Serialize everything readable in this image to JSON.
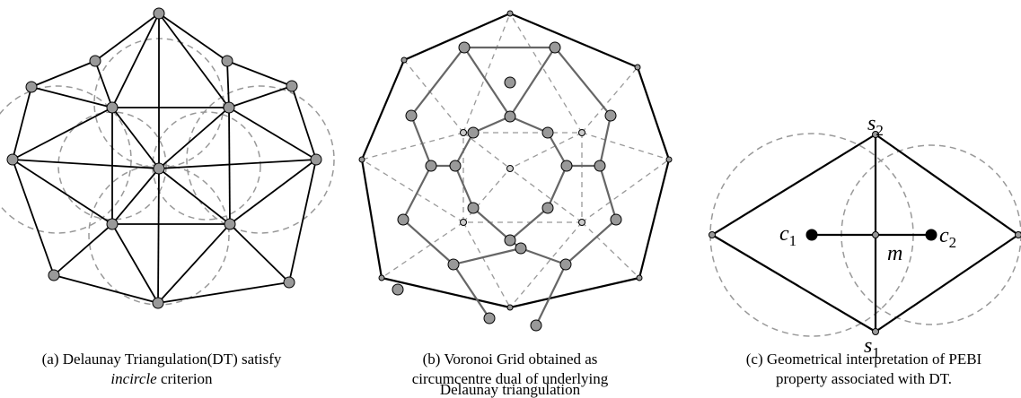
{
  "panels": [
    {
      "caption": {
        "lines": [
          "(a) Delaunay Triangulation(DT) satisfy"
        ],
        "italic": "incircle",
        "rest": " criterion"
      }
    },
    {
      "caption": {
        "lines": [
          "(b) Voronoi Grid obtained as",
          "circumcentre dual of underlying",
          "Delaunay triangulation"
        ]
      }
    },
    {
      "caption": {
        "lines": [
          "(c) Geometrical interpretation of PEBI",
          "property associated with DT."
        ]
      },
      "labels": [
        {
          "name": "s",
          "subscript": "2"
        },
        {
          "name": "c",
          "subscript": "1"
        },
        {
          "name": "c",
          "subscript": "2"
        },
        {
          "name": "m"
        },
        {
          "name": "s",
          "subscript": "1"
        }
      ]
    }
  ]
}
